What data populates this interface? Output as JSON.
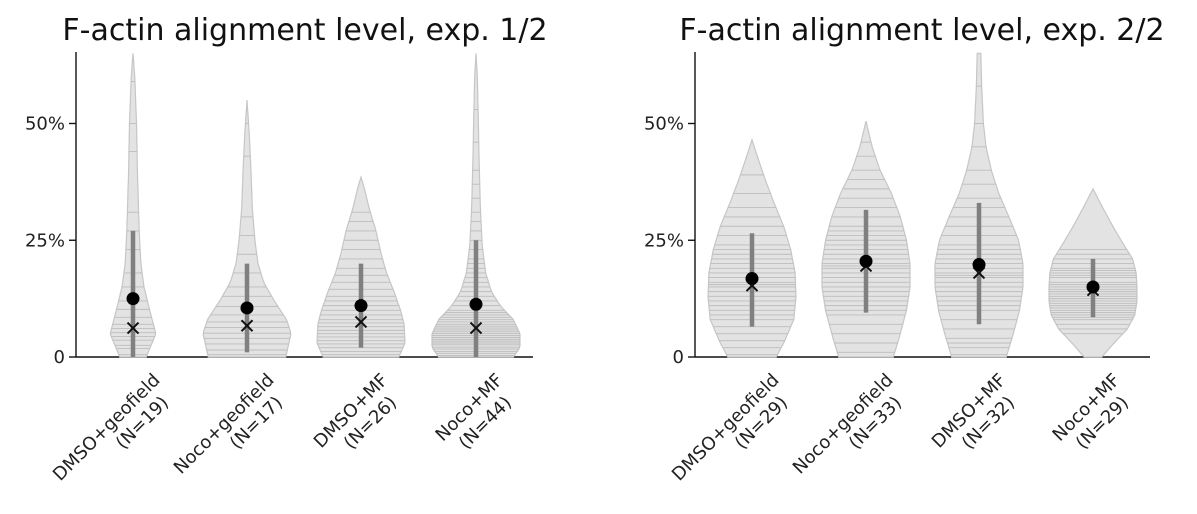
{
  "chart_data": [
    {
      "type": "violin",
      "title": "F-actin alignment level, exp. 1/2",
      "xlabel": "",
      "ylabel": "",
      "ylim": [
        0,
        65
      ],
      "yticks": [
        0,
        25,
        50
      ],
      "ytick_labels": [
        "0",
        "25%",
        "50%"
      ],
      "grid": false,
      "categories": [
        {
          "line1": "DMSO+geofield",
          "line2": "(N=19)",
          "max": 65,
          "mean": 12.5,
          "median": 6.2,
          "sd_low": 0,
          "sd_high": 27,
          "profile": [
            [
              0,
              0.3
            ],
            [
              5,
              0.52
            ],
            [
              10,
              0.38
            ],
            [
              15,
              0.25
            ],
            [
              20,
              0.18
            ],
            [
              25,
              0.15
            ],
            [
              30,
              0.13
            ],
            [
              40,
              0.1
            ],
            [
              50,
              0.08
            ],
            [
              60,
              0.04
            ],
            [
              65,
              0
            ]
          ],
          "lines": [
            0.5,
            1.8,
            2.5,
            3.6,
            4.4,
            5.2,
            6.1,
            7.0,
            8.5,
            10.2,
            12,
            15,
            18,
            23,
            27,
            31,
            44,
            50,
            59
          ]
        },
        {
          "line1": "Noco+geofield",
          "line2": "(N=17)",
          "max": 55,
          "mean": 10.5,
          "median": 6.7,
          "sd_low": 1,
          "sd_high": 20,
          "profile": [
            [
              0,
              0.88
            ],
            [
              5,
              1.0
            ],
            [
              8,
              0.9
            ],
            [
              12,
              0.62
            ],
            [
              16,
              0.38
            ],
            [
              20,
              0.25
            ],
            [
              25,
              0.18
            ],
            [
              32,
              0.12
            ],
            [
              40,
              0.09
            ],
            [
              48,
              0.05
            ],
            [
              55,
              0
            ]
          ],
          "lines": [
            0.5,
            1.5,
            2.8,
            4,
            5.1,
            6.3,
            7.5,
            9,
            10.8,
            13,
            15,
            18,
            22,
            26,
            30,
            43,
            50
          ]
        },
        {
          "line1": "DMSO+MF",
          "line2": "(N=26)",
          "max": 38.5,
          "mean": 11,
          "median": 7.5,
          "sd_low": 2,
          "sd_high": 20,
          "profile": [
            [
              0,
              0.86
            ],
            [
              3,
              1.0
            ],
            [
              7,
              0.98
            ],
            [
              10,
              0.9
            ],
            [
              14,
              0.75
            ],
            [
              18,
              0.58
            ],
            [
              22,
              0.46
            ],
            [
              27,
              0.34
            ],
            [
              32,
              0.18
            ],
            [
              36,
              0.08
            ],
            [
              38.5,
              0
            ]
          ],
          "lines": [
            0.5,
            1.2,
            2,
            2.8,
            3.5,
            4.3,
            5,
            5.7,
            6.5,
            7.3,
            8,
            9,
            10,
            11,
            12,
            13,
            14.5,
            16,
            17.5,
            19,
            21,
            23,
            25,
            27,
            29,
            31
          ]
        },
        {
          "line1": "Noco+MF",
          "line2": "(N=44)",
          "max": 65,
          "mean": 11.3,
          "median": 6.2,
          "sd_low": 0,
          "sd_high": 25,
          "profile": [
            [
              0,
              0.85
            ],
            [
              2,
              1.0
            ],
            [
              5,
              1.0
            ],
            [
              8,
              0.85
            ],
            [
              11,
              0.55
            ],
            [
              14,
              0.35
            ],
            [
              18,
              0.22
            ],
            [
              24,
              0.14
            ],
            [
              32,
              0.1
            ],
            [
              42,
              0.07
            ],
            [
              52,
              0.05
            ],
            [
              60,
              0.03
            ],
            [
              65,
              0
            ]
          ],
          "lines": [
            0.3,
            0.8,
            1.2,
            1.7,
            2.1,
            2.6,
            3,
            3.4,
            3.8,
            4.2,
            4.6,
            5,
            5.4,
            5.8,
            6.2,
            6.6,
            7,
            7.5,
            8,
            8.5,
            9,
            9.5,
            10,
            11,
            12,
            13,
            14,
            15,
            16,
            17,
            18,
            19,
            20,
            21,
            23,
            25,
            27,
            29,
            31,
            34,
            37,
            40,
            46,
            53
          ]
        }
      ]
    },
    {
      "type": "violin",
      "title": "F-actin alignment level, exp. 2/2",
      "xlabel": "",
      "ylabel": "",
      "ylim": [
        0,
        65
      ],
      "yticks": [
        0,
        25,
        50
      ],
      "ytick_labels": [
        "0",
        "25%",
        "50%"
      ],
      "grid": false,
      "categories": [
        {
          "line1": "DMSO+geofield",
          "line2": "(N=29)",
          "min": 0,
          "max": 46.5,
          "mean": 16.8,
          "median": 15.3,
          "sd_low": 6.5,
          "sd_high": 26.5,
          "profile": [
            [
              0,
              0.55
            ],
            [
              3,
              0.72
            ],
            [
              8,
              0.95
            ],
            [
              13,
              1.0
            ],
            [
              18,
              0.98
            ],
            [
              23,
              0.88
            ],
            [
              28,
              0.72
            ],
            [
              33,
              0.5
            ],
            [
              38,
              0.3
            ],
            [
              43,
              0.12
            ],
            [
              46.5,
              0
            ]
          ],
          "lines": [
            0.5,
            2,
            3.5,
            5,
            6.5,
            8,
            9,
            10,
            11,
            12,
            13,
            14,
            15,
            15.5,
            16,
            17,
            18,
            19,
            20,
            21,
            22,
            23,
            24,
            26,
            28,
            30,
            32,
            35,
            39
          ]
        },
        {
          "line1": "Noco+geofield",
          "line2": "(N=33)",
          "min": 0,
          "max": 50.5,
          "mean": 20.5,
          "median": 19.5,
          "sd_low": 9.5,
          "sd_high": 31.5,
          "profile": [
            [
              0,
              0.62
            ],
            [
              4,
              0.75
            ],
            [
              10,
              0.92
            ],
            [
              15,
              1.0
            ],
            [
              20,
              1.0
            ],
            [
              25,
              0.92
            ],
            [
              30,
              0.78
            ],
            [
              35,
              0.58
            ],
            [
              40,
              0.32
            ],
            [
              45,
              0.14
            ],
            [
              50.5,
              0
            ]
          ],
          "lines": [
            1,
            3,
            5,
            7,
            9,
            10,
            11,
            12,
            13,
            14,
            15,
            16,
            17,
            18,
            19,
            19.5,
            20,
            21,
            22,
            23,
            24,
            25,
            26,
            27,
            28,
            30,
            32,
            34,
            36,
            38,
            40,
            43,
            46
          ]
        },
        {
          "line1": "DMSO+MF",
          "line2": "(N=32)",
          "min": 0,
          "max": 65,
          "mean": 19.8,
          "median": 18,
          "sd_low": 7,
          "sd_high": 33,
          "profile": [
            [
              0,
              0.62
            ],
            [
              5,
              0.78
            ],
            [
              10,
              0.92
            ],
            [
              15,
              1.0
            ],
            [
              20,
              1.0
            ],
            [
              25,
              0.9
            ],
            [
              30,
              0.68
            ],
            [
              35,
              0.45
            ],
            [
              40,
              0.28
            ],
            [
              45,
              0.16
            ],
            [
              50,
              0.1
            ],
            [
              58,
              0.06
            ],
            [
              65,
              0.04
            ]
          ],
          "lines": [
            0.5,
            2,
            3,
            4,
            6,
            8,
            10,
            11,
            12,
            13,
            14,
            15,
            16,
            17,
            17.5,
            18,
            19,
            20,
            21,
            22,
            23,
            24,
            26,
            28,
            30,
            32,
            34,
            37,
            40,
            45,
            50,
            58
          ]
        },
        {
          "line1": "Noco+MF",
          "line2": "(N=29)",
          "min": 0,
          "max": 36,
          "mean": 15,
          "median": 14.3,
          "sd_low": 8.5,
          "sd_high": 21,
          "profile": [
            [
              0,
              0.2
            ],
            [
              3,
              0.48
            ],
            [
              6,
              0.78
            ],
            [
              9,
              0.95
            ],
            [
              12,
              1.0
            ],
            [
              15,
              1.0
            ],
            [
              18,
              0.98
            ],
            [
              21,
              0.9
            ],
            [
              24,
              0.7
            ],
            [
              28,
              0.45
            ],
            [
              32,
              0.22
            ],
            [
              36,
              0
            ]
          ],
          "lines": [
            5,
            6,
            7,
            8,
            8.5,
            9,
            9.5,
            10,
            10.5,
            11,
            11.5,
            12,
            12.5,
            13,
            13.5,
            14,
            14.5,
            15,
            15.5,
            16,
            17,
            17.5,
            18,
            18.5,
            19,
            20,
            21,
            22,
            23
          ]
        }
      ]
    }
  ]
}
